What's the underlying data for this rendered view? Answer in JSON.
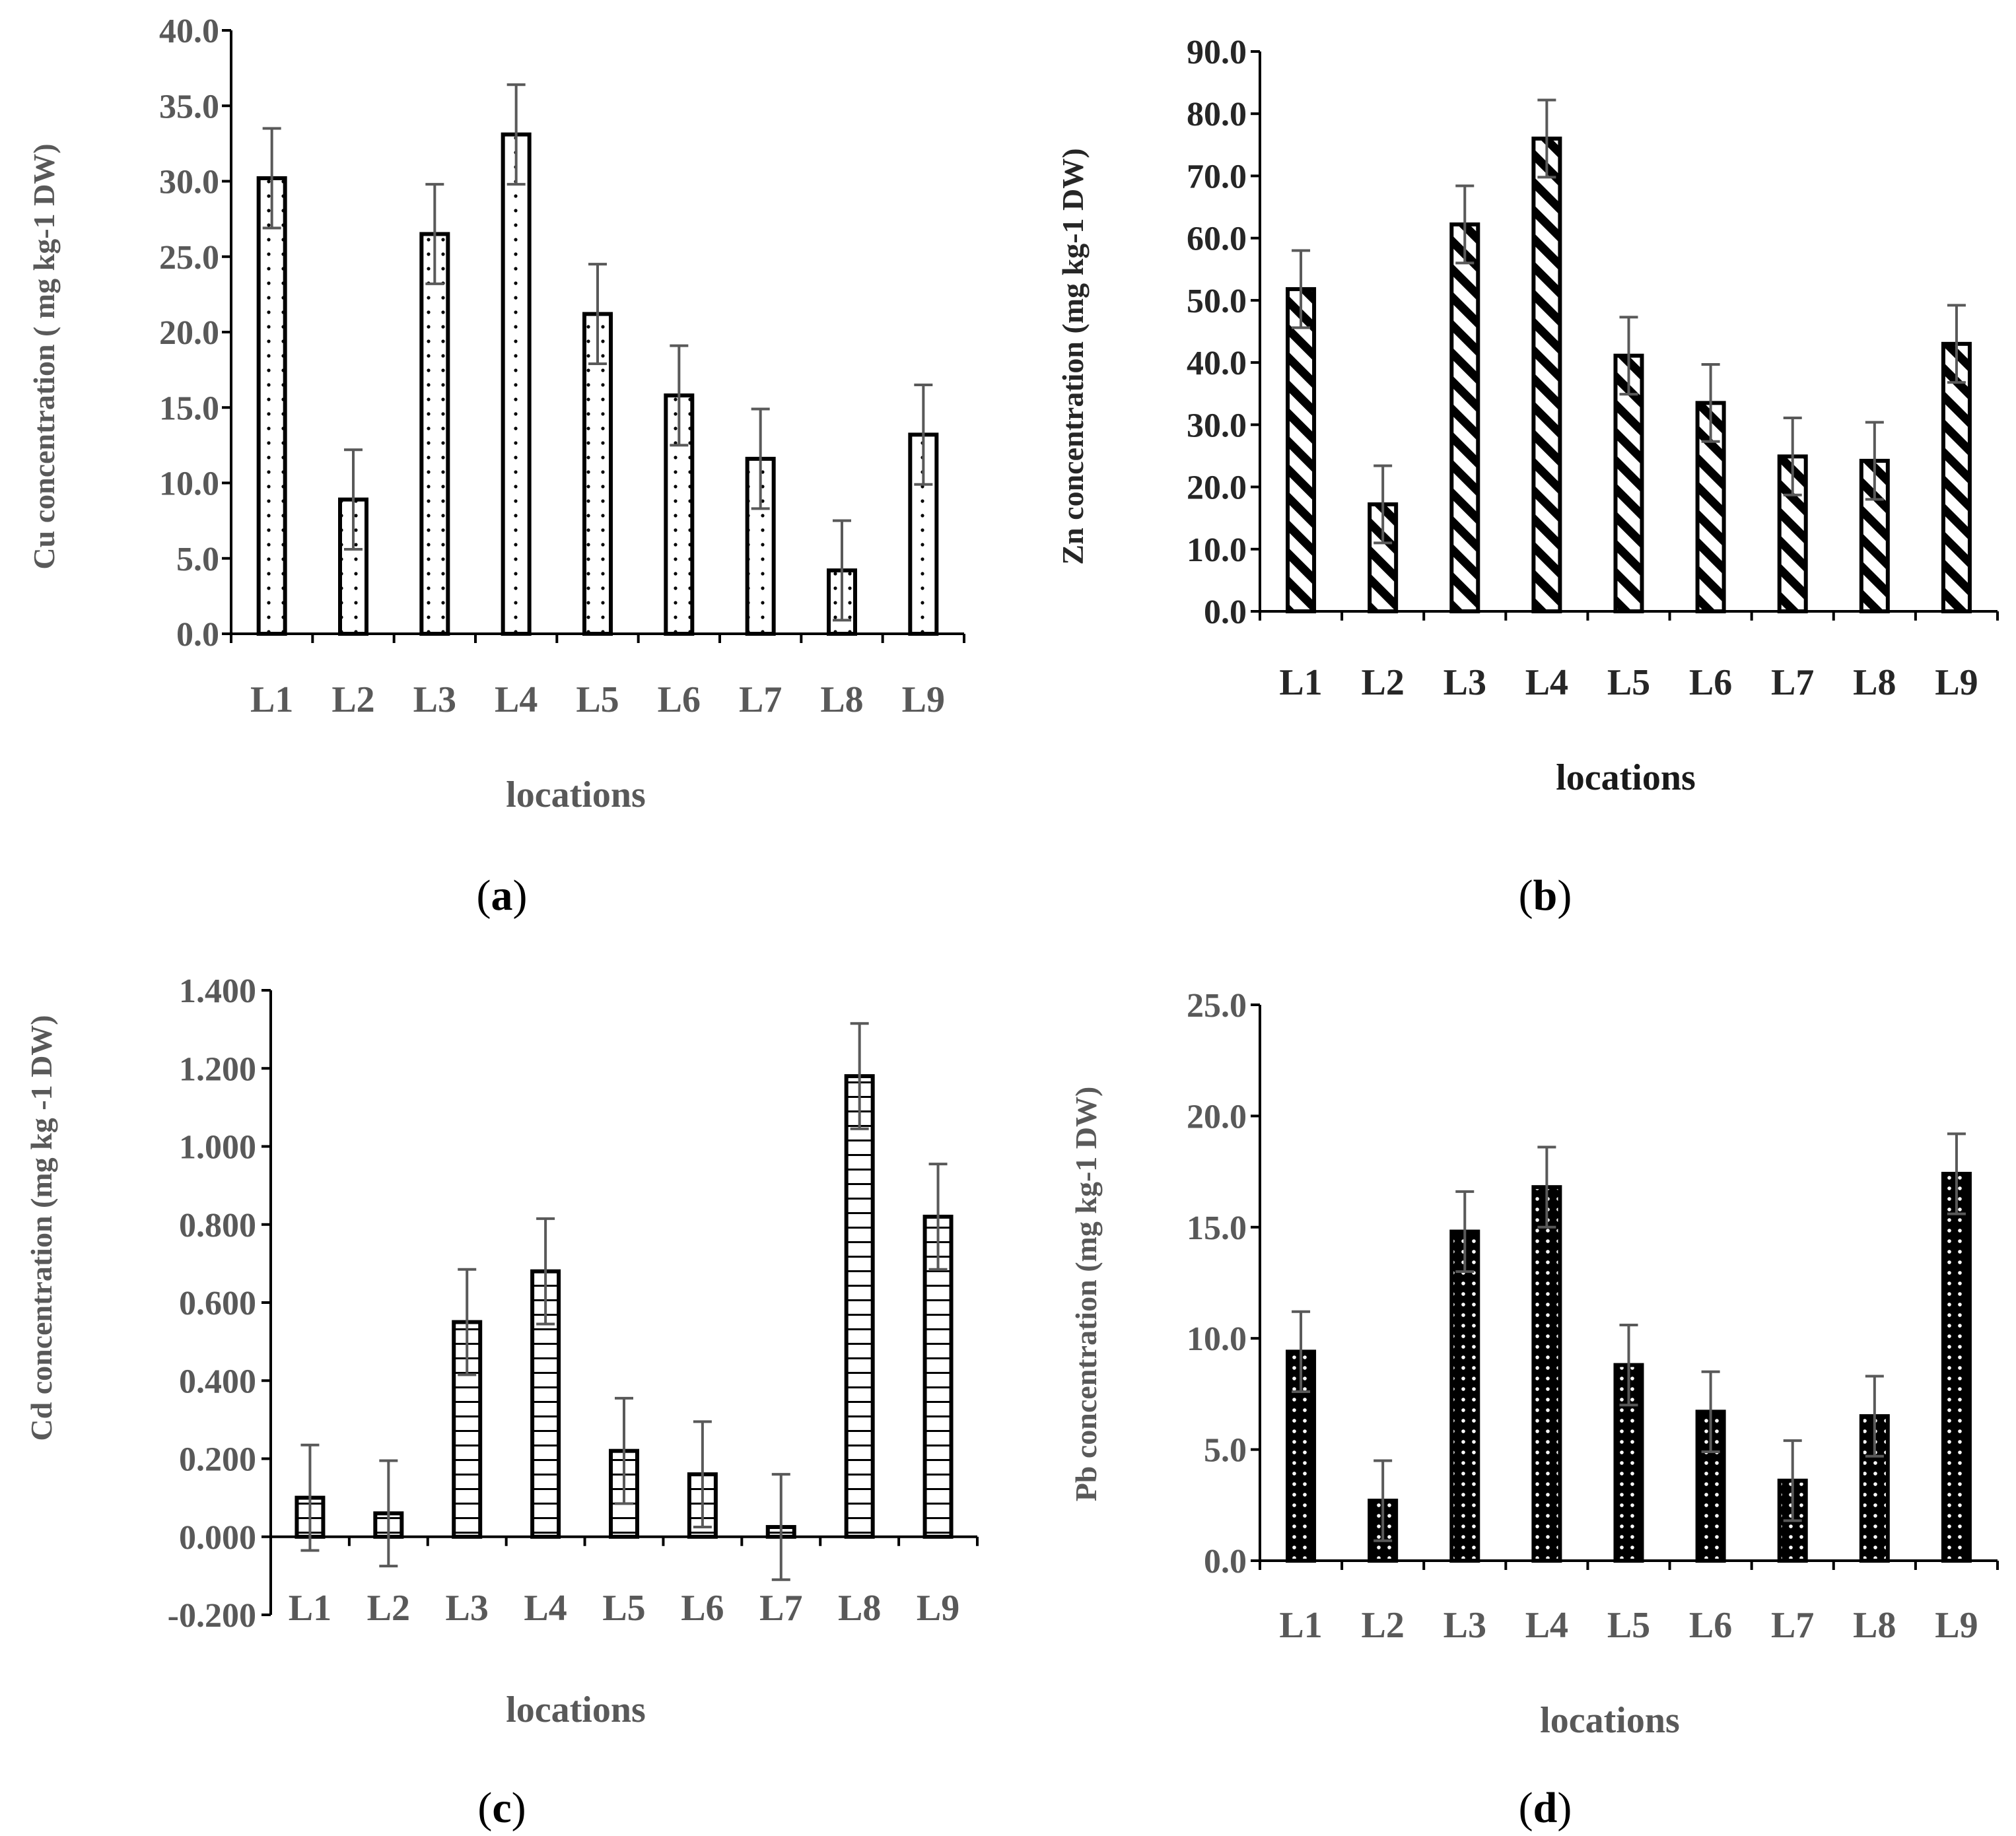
{
  "chart_data": [
    {
      "type": "bar",
      "panel_label": "a",
      "categories": [
        "L1",
        "L2",
        "L3",
        "L4",
        "L5",
        "L6",
        "L7",
        "L8",
        "L9"
      ],
      "values": [
        30.2,
        8.9,
        26.5,
        33.1,
        21.2,
        15.8,
        11.6,
        4.2,
        13.2
      ],
      "errors": [
        3.3,
        3.3,
        3.3,
        3.3,
        3.3,
        3.3,
        3.3,
        3.3,
        3.3
      ],
      "ylim": [
        0,
        40
      ],
      "yticks": [
        "0.0",
        "5.0",
        "10.0",
        "15.0",
        "20.0",
        "25.0",
        "30.0",
        "35.0",
        "40.0"
      ],
      "ylabel": "Cu concentration ( mg kg-1 DW)",
      "xlabel": "locations",
      "fill_pattern": "sparse-dots",
      "text_color": "#595959"
    },
    {
      "type": "bar",
      "panel_label": "b",
      "categories": [
        "L1",
        "L2",
        "L3",
        "L4",
        "L5",
        "L6",
        "L7",
        "L8",
        "L9"
      ],
      "values": [
        51.8,
        17.2,
        62.2,
        76.0,
        41.1,
        33.5,
        24.9,
        24.2,
        43.0
      ],
      "errors": [
        6.2,
        6.2,
        6.2,
        6.2,
        6.2,
        6.2,
        6.2,
        6.2,
        6.2
      ],
      "ylim": [
        0,
        90
      ],
      "yticks": [
        "0.0",
        "10.0",
        "20.0",
        "30.0",
        "40.0",
        "50.0",
        "60.0",
        "70.0",
        "80.0",
        "90.0"
      ],
      "ylabel": "Zn concentration (mg kg-1 DW)",
      "xlabel": "locations",
      "fill_pattern": "diagonal-stripes",
      "text_color": "#262626"
    },
    {
      "type": "bar",
      "panel_label": "c",
      "categories": [
        "L1",
        "L2",
        "L3",
        "L4",
        "L5",
        "L6",
        "L7",
        "L8",
        "L9"
      ],
      "values": [
        0.1,
        0.06,
        0.55,
        0.68,
        0.22,
        0.16,
        0.025,
        1.18,
        0.82
      ],
      "errors": [
        0.135,
        0.135,
        0.135,
        0.135,
        0.135,
        0.135,
        0.135,
        0.135,
        0.135
      ],
      "ylim": [
        -0.2,
        1.4
      ],
      "yticks": [
        "-0.200",
        "0.000",
        "0.200",
        "0.400",
        "0.600",
        "0.800",
        "1.000",
        "1.200",
        "1.400"
      ],
      "ylabel": "Cd concentration (mg kg -1 DW)",
      "xlabel": "locations",
      "fill_pattern": "horizontal-lines",
      "text_color": "#595959"
    },
    {
      "type": "bar",
      "panel_label": "d",
      "categories": [
        "L1",
        "L2",
        "L3",
        "L4",
        "L5",
        "L6",
        "L7",
        "L8",
        "L9"
      ],
      "values": [
        9.4,
        2.7,
        14.8,
        16.8,
        8.8,
        6.7,
        3.6,
        6.5,
        17.4
      ],
      "errors": [
        1.8,
        1.8,
        1.8,
        1.8,
        1.8,
        1.8,
        1.8,
        1.8,
        1.8
      ],
      "ylim": [
        0,
        25
      ],
      "yticks": [
        "0.0",
        "5.0",
        "10.0",
        "15.0",
        "20.0",
        "25.0"
      ],
      "ylabel": "Pb concentration (mg kg-1 DW)",
      "xlabel": "locations",
      "fill_pattern": "dense-dots",
      "text_color": "#595959"
    }
  ]
}
